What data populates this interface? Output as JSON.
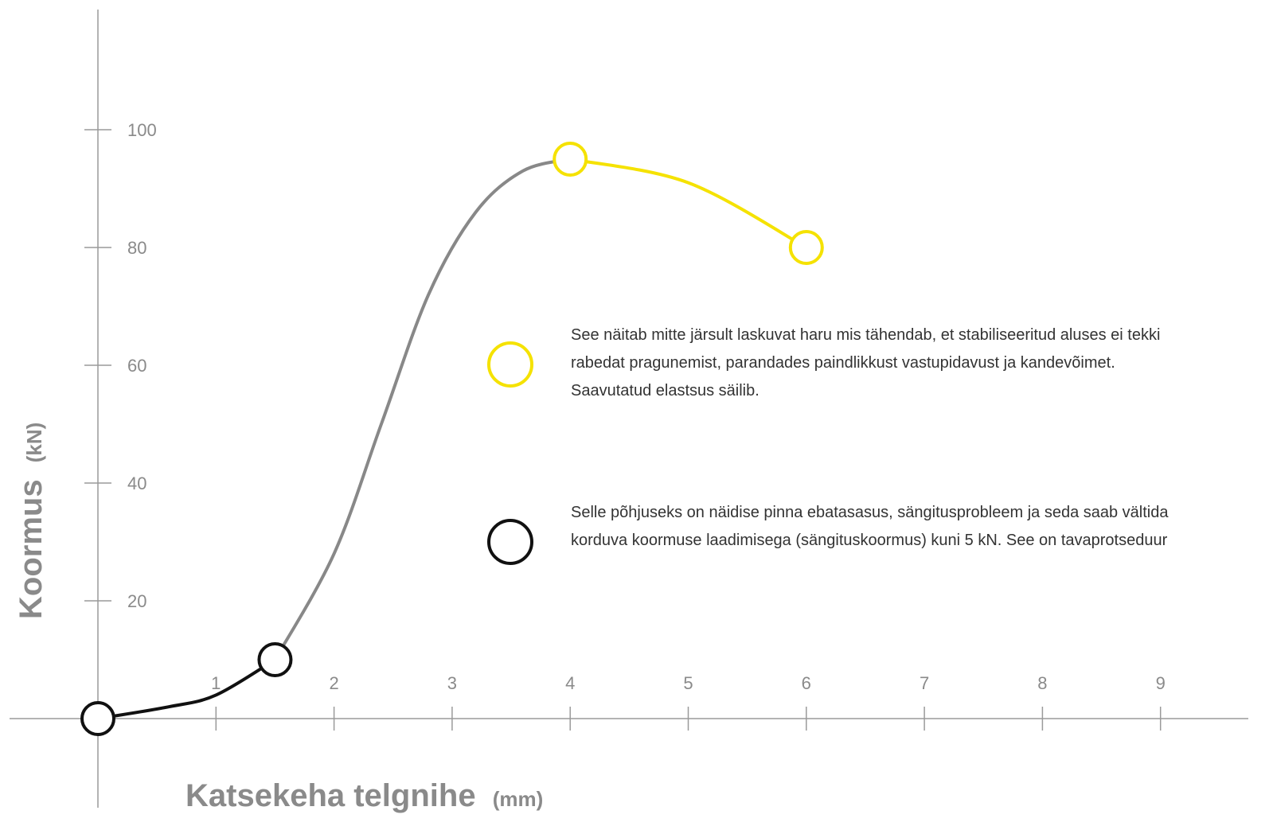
{
  "chart_data": {
    "type": "line",
    "xlabel": "Katsekeha telgnihe",
    "xunit": "(mm)",
    "ylabel": "Koormus",
    "yunit": "(kN)",
    "x_ticks": [
      "1",
      "2",
      "3",
      "4",
      "5",
      "6",
      "7",
      "8",
      "9"
    ],
    "y_ticks": [
      "20",
      "40",
      "60",
      "80",
      "100"
    ],
    "xlim": [
      0,
      9.5
    ],
    "ylim": [
      -15,
      120
    ],
    "grid": false,
    "series": [
      {
        "segment": "seating",
        "color": "#111111",
        "points": [
          [
            0,
            0
          ],
          [
            0.6,
            2
          ],
          [
            1.0,
            4
          ],
          [
            1.5,
            10
          ]
        ]
      },
      {
        "segment": "elastic-rise",
        "color": "#888888",
        "points": [
          [
            1.5,
            10
          ],
          [
            2.0,
            28
          ],
          [
            2.4,
            50
          ],
          [
            2.8,
            72
          ],
          [
            3.2,
            86
          ],
          [
            3.6,
            93
          ],
          [
            4.0,
            95
          ]
        ]
      },
      {
        "segment": "post-peak",
        "color": "#f5e200",
        "points": [
          [
            4.0,
            95
          ],
          [
            5.0,
            91
          ],
          [
            6.0,
            80
          ]
        ]
      }
    ],
    "markers": [
      {
        "x": 0,
        "y": 0,
        "color": "#111111"
      },
      {
        "x": 1.5,
        "y": 10,
        "color": "#111111"
      },
      {
        "x": 4,
        "y": 95,
        "color": "#f5e200"
      },
      {
        "x": 6,
        "y": 80,
        "color": "#f5e200"
      }
    ],
    "annotations": [
      {
        "marker_color": "#f5e200",
        "text": "See näitab mitte järsult laskuvat haru mis tähendab, et stabiliseeritud aluses ei tekki rabedat pragunemist, parandades paindlikkust vastupidavust ja kandevõimet. Saavutatud elastsus säilib."
      },
      {
        "marker_color": "#111111",
        "text": "Selle põhjuseks on näidise pinna ebatasasus, sängitusprobleem ja seda saab vältida korduva koormuse laadimisega (sängituskoormus) kuni 5 kN. See on tavaprotseduur"
      }
    ]
  }
}
